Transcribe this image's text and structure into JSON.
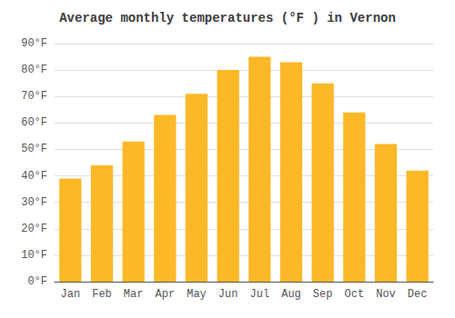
{
  "chart_data": {
    "type": "bar",
    "title": "Average monthly temperatures (°F ) in Vernon",
    "categories": [
      "Jan",
      "Feb",
      "Mar",
      "Apr",
      "May",
      "Jun",
      "Jul",
      "Aug",
      "Sep",
      "Oct",
      "Nov",
      "Dec"
    ],
    "values": [
      39,
      44,
      53,
      63,
      71,
      80,
      85,
      83,
      75,
      64,
      52,
      42
    ],
    "color": "#FDB827",
    "ylim": [
      0,
      90
    ],
    "yticks": [
      {
        "value": 0,
        "label": "0°F"
      },
      {
        "value": 10,
        "label": "10°F"
      },
      {
        "value": 20,
        "label": "20°F"
      },
      {
        "value": 30,
        "label": "30°F"
      },
      {
        "value": 40,
        "label": "40°F"
      },
      {
        "value": 50,
        "label": "50°F"
      },
      {
        "value": 60,
        "label": "60°F"
      },
      {
        "value": 70,
        "label": "70°F"
      },
      {
        "value": 80,
        "label": "80°F"
      },
      {
        "value": 90,
        "label": "90°F"
      }
    ],
    "grid": true
  }
}
